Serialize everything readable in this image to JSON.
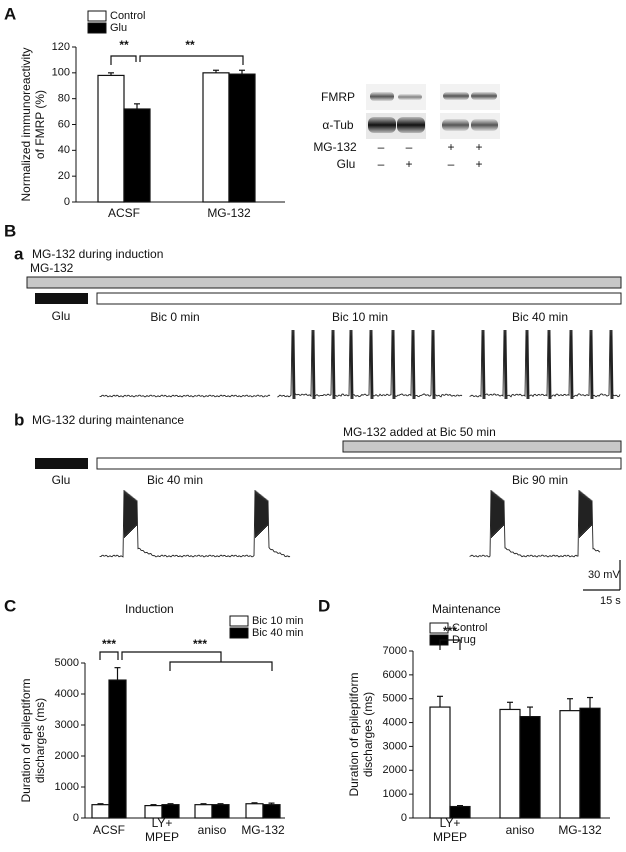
{
  "chart_data": [
    {
      "type": "bar",
      "panel": "A",
      "y_label": "Normalized immunoreactivity\nof FMRP (%)",
      "categories": [
        "ACSF",
        "MG-132"
      ],
      "series": [
        {
          "name": "Control",
          "color": "#ffffff",
          "values": [
            98,
            100
          ],
          "errors": [
            2,
            2
          ]
        },
        {
          "name": "Glu",
          "color": "#000000",
          "values": [
            72,
            99
          ],
          "errors": [
            4,
            3
          ]
        }
      ],
      "ylim": [
        0,
        120
      ],
      "yticks": [
        0,
        20,
        40,
        60,
        80,
        100,
        120
      ],
      "significance": [
        "**",
        "**"
      ]
    },
    {
      "type": "bar",
      "panel": "C",
      "title": "Induction",
      "y_label": "Duration of epileptiform\ndischarges (ms)",
      "categories": [
        "ACSF",
        "LY+\nMPEP",
        "aniso",
        "MG-132"
      ],
      "series": [
        {
          "name": "Bic 10 min",
          "color": "#ffffff",
          "values": [
            430,
            400,
            430,
            460
          ],
          "errors": [
            30,
            30,
            30,
            30
          ]
        },
        {
          "name": "Bic 40 min",
          "color": "#000000",
          "values": [
            4450,
            430,
            430,
            430
          ],
          "errors": [
            400,
            30,
            30,
            50
          ]
        }
      ],
      "ylim": [
        0,
        5000
      ],
      "yticks": [
        0,
        1000,
        2000,
        3000,
        4000,
        5000
      ],
      "significance": [
        "***",
        "***"
      ]
    },
    {
      "type": "bar",
      "panel": "D",
      "title": "Maintenance",
      "y_label": "Duration of epileptiform\ndischarges (ms)",
      "categories": [
        "LY+\nMPEP",
        "aniso",
        "MG-132"
      ],
      "series": [
        {
          "name": "Control",
          "color": "#ffffff",
          "values": [
            4650,
            4550,
            4500
          ],
          "errors": [
            450,
            300,
            500
          ]
        },
        {
          "name": "Drug",
          "color": "#000000",
          "values": [
            480,
            4250,
            4600
          ],
          "errors": [
            40,
            400,
            450
          ]
        }
      ],
      "ylim": [
        0,
        7000
      ],
      "yticks": [
        0,
        1000,
        2000,
        3000,
        4000,
        5000,
        6000,
        7000
      ],
      "significance": [
        "***"
      ]
    }
  ],
  "blot": {
    "bands": [
      "FMRP",
      "α-Tub"
    ],
    "rows": [
      {
        "label": "MG-132",
        "signs": [
          "–",
          "–",
          "+",
          "+"
        ]
      },
      {
        "label": "Glu",
        "signs": [
          "–",
          "+",
          "–",
          "+"
        ]
      }
    ]
  },
  "panel_b": {
    "label": "B",
    "a": {
      "letter": "a",
      "title": "MG-132 during induction",
      "drug_bar": "MG-132",
      "glu": "Glu",
      "times": [
        "Bic 0 min",
        "Bic 10 min",
        "Bic 40 min"
      ]
    },
    "b": {
      "letter": "b",
      "title": "MG-132 during maintenance",
      "drug_bar": "MG-132 added at Bic 50 min",
      "glu": "Glu",
      "times": [
        "Bic 40 min",
        "Bic 90 min"
      ]
    },
    "scale": {
      "voltage": "30 mV",
      "time": "15 s"
    }
  }
}
